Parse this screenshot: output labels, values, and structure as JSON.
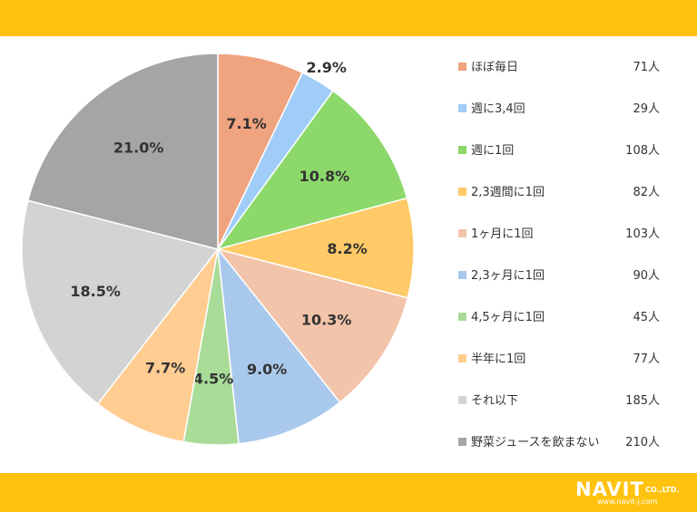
{
  "chart_data": {
    "type": "pie",
    "slices": [
      {
        "label": "ほぼ毎日",
        "count": "71人",
        "percent": 7.1,
        "percent_label": "7.1%",
        "color": "#f0a37f"
      },
      {
        "label": "週に3,4回",
        "count": "29人",
        "percent": 2.9,
        "percent_label": "2.9%",
        "color": "#9fcdf8"
      },
      {
        "label": "週に1回",
        "count": "108人",
        "percent": 10.8,
        "percent_label": "10.8%",
        "color": "#8dd86a"
      },
      {
        "label": "2,3週間に1回",
        "count": "82人",
        "percent": 8.2,
        "percent_label": "8.2%",
        "color": "#ffca67"
      },
      {
        "label": "1ヶ月に1回",
        "count": "103人",
        "percent": 10.3,
        "percent_label": "10.3%",
        "color": "#f2c4aa"
      },
      {
        "label": "2,3ヶ月に1回",
        "count": "90人",
        "percent": 9.0,
        "percent_label": "9.0%",
        "color": "#a9c9ec"
      },
      {
        "label": "4,5ヶ月に1回",
        "count": "45人",
        "percent": 4.5,
        "percent_label": "4.5%",
        "color": "#a9dc98"
      },
      {
        "label": "半年に1回",
        "count": "77人",
        "percent": 7.7,
        "percent_label": "7.7%",
        "color": "#ffcc92"
      },
      {
        "label": "それ以下",
        "count": "185人",
        "percent": 18.5,
        "percent_label": "18.5%",
        "color": "#d3d3d3"
      },
      {
        "label": "野菜ジュースを飲まない",
        "count": "210人",
        "percent": 21.0,
        "percent_label": "21.0%",
        "color": "#a5a5a5"
      }
    ]
  },
  "brand": {
    "logo_text": "NAVIT",
    "logo_suffix": "CO.,LTD.",
    "url": "www.navit-j.com",
    "bar_color": "#ffc20e"
  }
}
